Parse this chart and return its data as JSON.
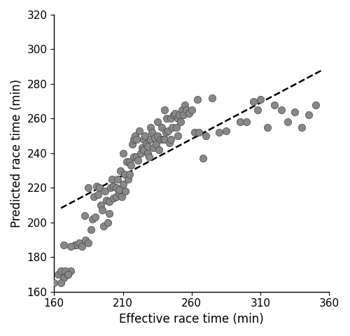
{
  "x": [
    163,
    165,
    167,
    170,
    172,
    175,
    176,
    178,
    180,
    182,
    183,
    185,
    185,
    187,
    188,
    189,
    190,
    191,
    192,
    193,
    194,
    195,
    196,
    197,
    198,
    199,
    200,
    200,
    201,
    202,
    203,
    203,
    205,
    205,
    206,
    207,
    207,
    208,
    209,
    210,
    210,
    211,
    212,
    213,
    214,
    215,
    215,
    216,
    217,
    218,
    218,
    219,
    220,
    220,
    221,
    222,
    223,
    224,
    225,
    225,
    226,
    227,
    228,
    228,
    229,
    230,
    230,
    231,
    232,
    233,
    234,
    235,
    235,
    236,
    237,
    238,
    239,
    240,
    240,
    241,
    242,
    243,
    244,
    245,
    245,
    246,
    247,
    248,
    249,
    250,
    250,
    251,
    252,
    253,
    254,
    255,
    256,
    258,
    260,
    262,
    264,
    265,
    268,
    270,
    275,
    280,
    285,
    295,
    300,
    305,
    308,
    310,
    315,
    320,
    325,
    330,
    335,
    340,
    345,
    350,
    160,
    165,
    167,
    168,
    170,
    172
  ],
  "y": [
    170,
    172,
    168,
    170,
    172,
    187,
    187,
    188,
    186,
    204,
    190,
    188,
    220,
    196,
    202,
    215,
    203,
    221,
    216,
    220,
    210,
    207,
    198,
    218,
    213,
    200,
    212,
    205,
    220,
    225,
    214,
    221,
    220,
    215,
    225,
    217,
    219,
    230,
    215,
    222,
    240,
    228,
    218,
    235,
    225,
    235,
    228,
    233,
    245,
    248,
    238,
    250,
    238,
    248,
    236,
    253,
    240,
    243,
    248,
    242,
    250,
    245,
    244,
    240,
    238,
    255,
    248,
    252,
    243,
    249,
    245,
    258,
    250,
    242,
    248,
    255,
    248,
    265,
    248,
    252,
    260,
    253,
    246,
    248,
    260,
    255,
    262,
    263,
    255,
    260,
    250,
    262,
    258,
    265,
    262,
    268,
    265,
    263,
    265,
    252,
    271,
    252,
    237,
    250,
    272,
    252,
    253,
    258,
    258,
    270,
    265,
    271,
    255,
    268,
    265,
    258,
    264,
    255,
    262,
    268,
    165,
    165,
    187,
    172,
    170,
    186
  ],
  "scatter_color": "#888888",
  "scatter_edgecolor": "#444444",
  "scatter_size": 55,
  "scatter_alpha": 1.0,
  "line_color": "#000000",
  "line_style": "--",
  "line_width": 1.8,
  "line_x_start": 165,
  "line_x_end": 355,
  "line_slope": 0.42,
  "line_intercept": 139.0,
  "xlabel": "Effective race time (min)",
  "ylabel": "Predicted race time (min)",
  "xlim": [
    160,
    360
  ],
  "ylim": [
    160,
    320
  ],
  "xticks": [
    160,
    210,
    260,
    310,
    360
  ],
  "yticks": [
    160,
    180,
    200,
    220,
    240,
    260,
    280,
    300,
    320
  ],
  "tick_fontsize": 11,
  "label_fontsize": 12,
  "fig_width": 5.0,
  "fig_height": 4.8,
  "dpi": 100
}
